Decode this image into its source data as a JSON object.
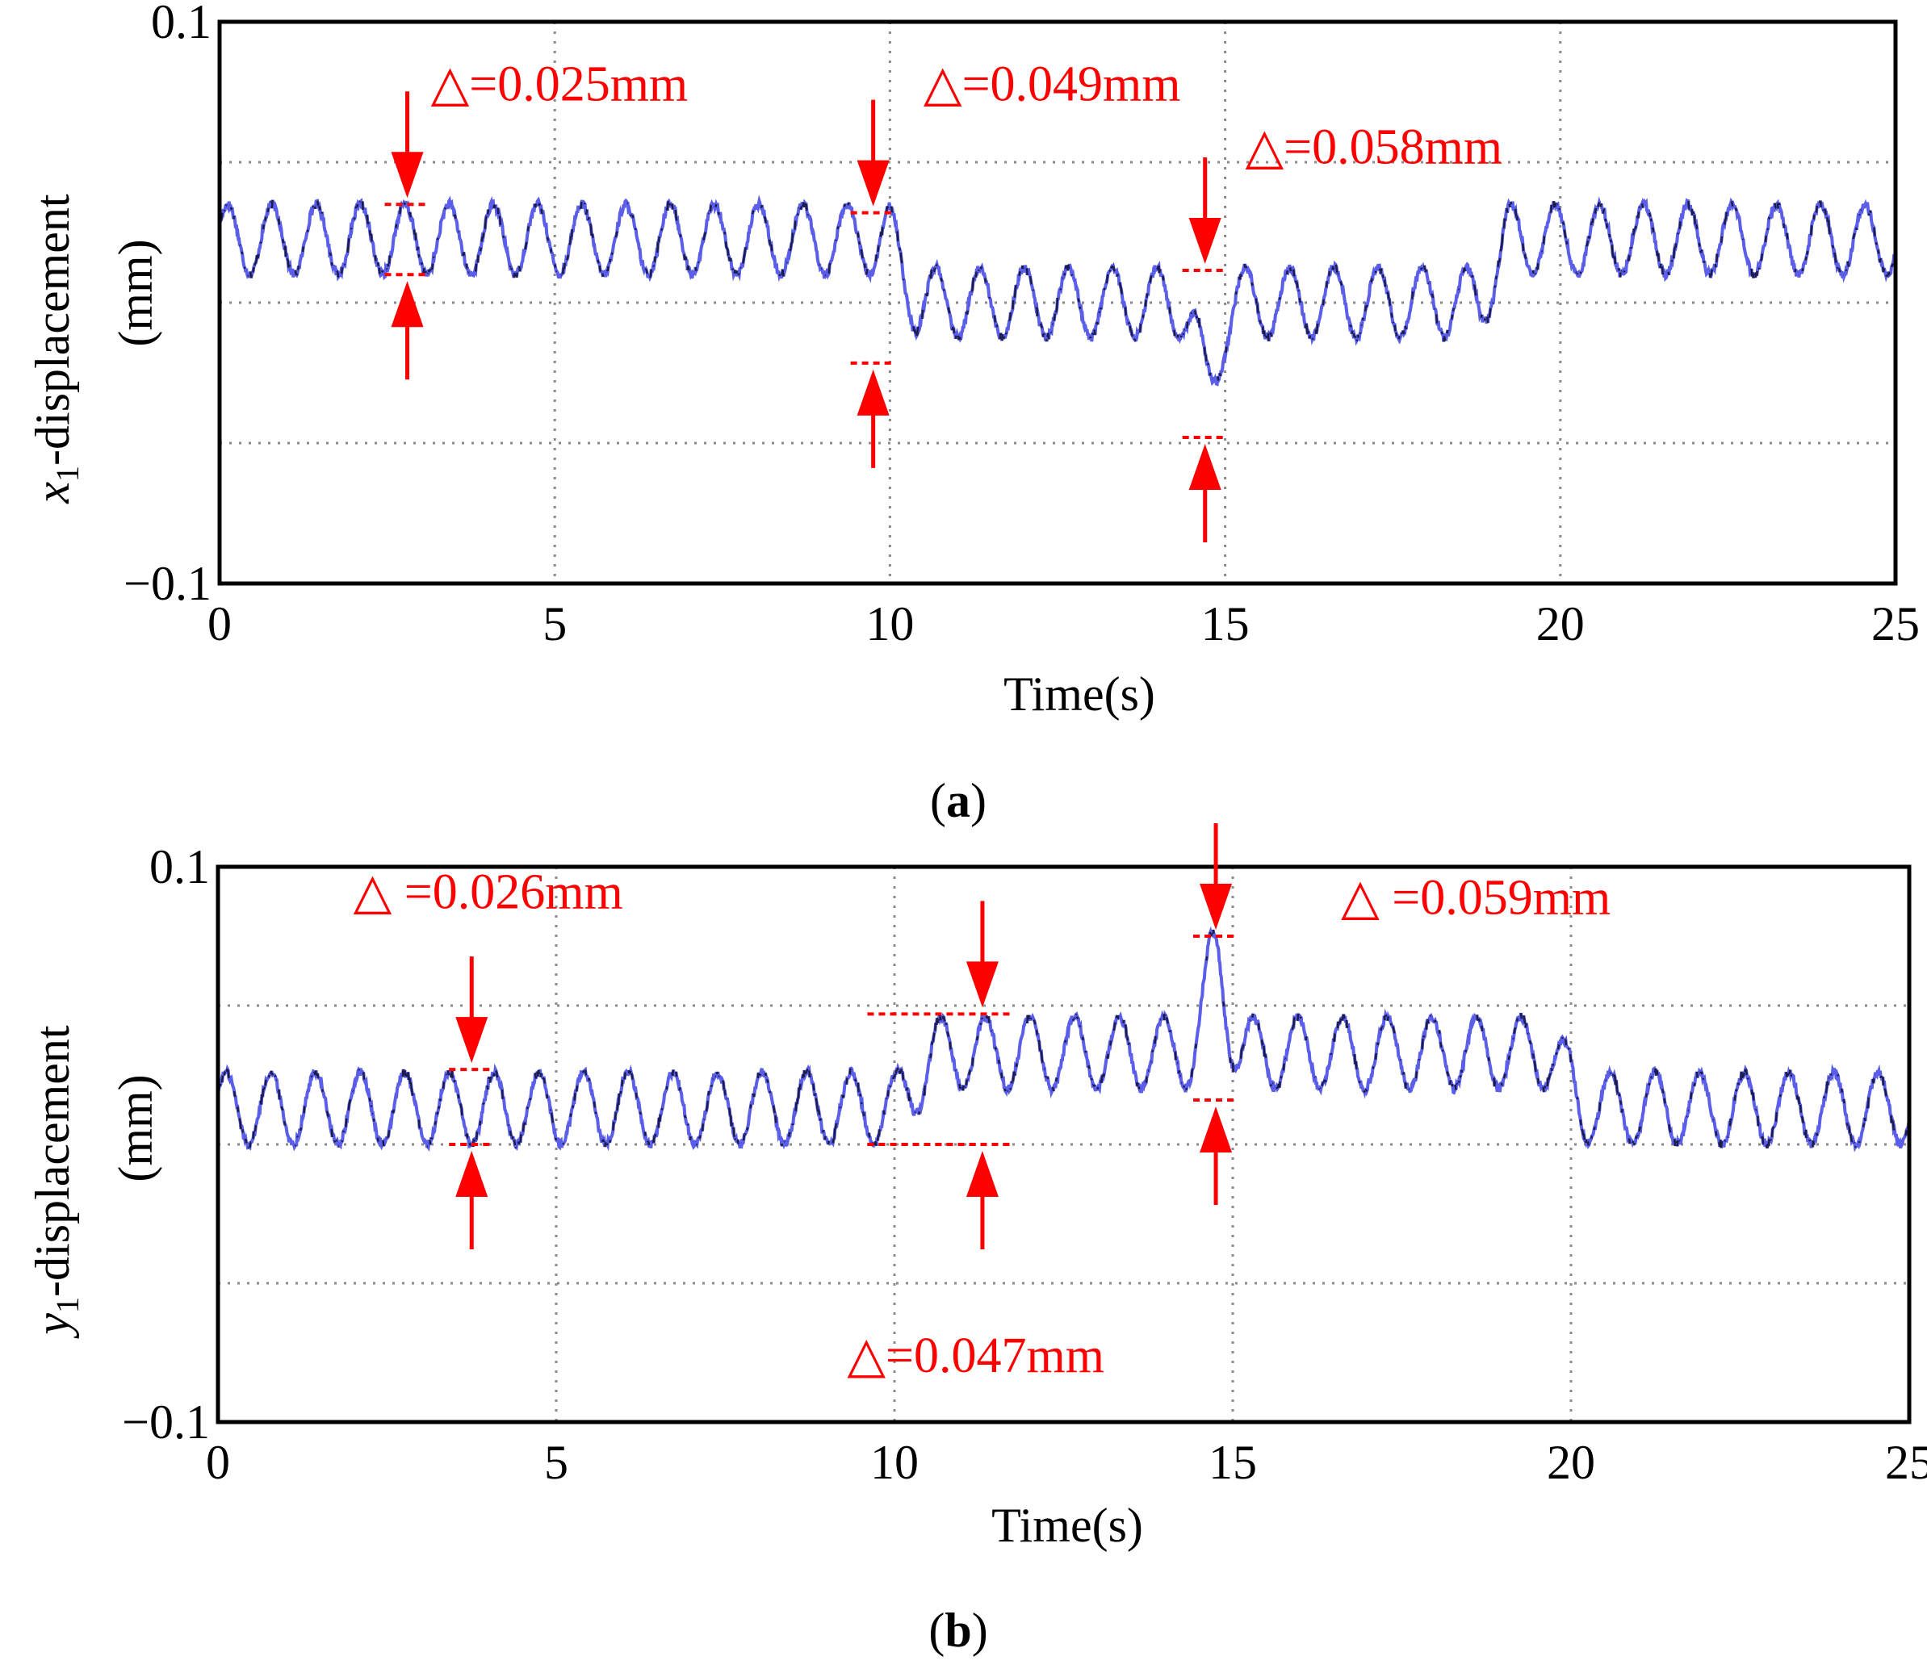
{
  "colors": {
    "signal": "#5a5ee8",
    "signal_dark": "#1c1c4a",
    "annotation": "#ff0000",
    "frame": "#000000",
    "grid": "#8a8a8a"
  },
  "chart_data": [
    {
      "panel_label_open": "(",
      "panel_label": "a",
      "panel_label_close": ")",
      "type": "line",
      "title": "",
      "xlabel": "Time(s)",
      "ylabel_var": "x",
      "ylabel_sub": "1",
      "ylabel_rest": "-displacement",
      "ylabel_unit": "(mm)",
      "xlim": [
        0,
        25
      ],
      "ylim": [
        -0.1,
        0.1
      ],
      "x_ticks": [
        0,
        5,
        10,
        15,
        20,
        25
      ],
      "x_tick_labels": [
        "0",
        "5",
        "10",
        "15",
        "20",
        "25"
      ],
      "y_tick_labels": [
        "0.1",
        "−0.1"
      ],
      "grid": true,
      "signal_model": {
        "sample_step_s": 0.01,
        "oscillation_period_s": 0.66,
        "oscillation_amplitude_mm": 0.0125,
        "noise_mm": 0.0015,
        "baseline_segments": [
          {
            "t_start": 0,
            "t_end": 10.0,
            "center_mm": 0.0225
          },
          {
            "t_start": 10.0,
            "t_end": 10.4,
            "center_mm": 0.0
          },
          {
            "t_start": 10.4,
            "t_end": 18.8,
            "center_mm": 0.0
          },
          {
            "t_start": 18.8,
            "t_end": 19.2,
            "center_mm": 0.0225
          },
          {
            "t_start": 19.2,
            "t_end": 25,
            "center_mm": 0.0225
          }
        ],
        "spikes": [
          {
            "t": 14.75,
            "depth_mm": -0.03,
            "width_s": 0.35
          }
        ]
      },
      "annotations": [
        {
          "label": "△=0.025mm",
          "x": 2.8,
          "y_top": 0.035,
          "y_bottom": 0.01,
          "label_x": 3.15,
          "label_y": 0.072
        },
        {
          "label": "△=0.049mm",
          "x": 9.75,
          "y_top": 0.032,
          "y_bottom": -0.0215,
          "label_x": 10.5,
          "label_y": 0.072
        },
        {
          "label": "△=0.058mm",
          "x": 14.7,
          "y_top": 0.0115,
          "y_bottom": -0.048,
          "label_x": 15.3,
          "label_y": 0.0495
        }
      ]
    },
    {
      "panel_label_open": "(",
      "panel_label": "b",
      "panel_label_close": ")",
      "type": "line",
      "title": "",
      "xlabel": "Time(s)",
      "ylabel_var": "y",
      "ylabel_sub": "1",
      "ylabel_rest": "-displacement",
      "ylabel_unit": "(mm)",
      "xlim": [
        0,
        25
      ],
      "ylim": [
        -0.1,
        0.1
      ],
      "x_ticks": [
        0,
        5,
        10,
        15,
        20,
        25
      ],
      "x_tick_labels": [
        "0",
        "5",
        "10",
        "15",
        "20",
        "25"
      ],
      "y_tick_labels": [
        "0.1",
        "−0.1"
      ],
      "grid": true,
      "signal_model": {
        "sample_step_s": 0.01,
        "oscillation_period_s": 0.66,
        "oscillation_amplitude_mm": 0.013,
        "noise_mm": 0.0015,
        "baseline_segments": [
          {
            "t_start": 0,
            "t_end": 10.0,
            "center_mm": 0.013
          },
          {
            "t_start": 10.0,
            "t_end": 10.6,
            "center_mm": 0.033
          },
          {
            "t_start": 10.6,
            "t_end": 19.7,
            "center_mm": 0.033
          },
          {
            "t_start": 19.7,
            "t_end": 20.2,
            "center_mm": 0.013
          },
          {
            "t_start": 20.2,
            "t_end": 25,
            "center_mm": 0.013
          }
        ],
        "spikes": [
          {
            "t": 14.75,
            "depth_mm": 0.035,
            "width_s": 0.35
          }
        ]
      },
      "annotations": [
        {
          "label": "△ =0.026mm",
          "x": 3.75,
          "y_top": 0.027,
          "y_bottom": 0.0,
          "label_x": 2.0,
          "label_y": 0.085,
          "label_anchor": "start"
        },
        {
          "label": "△=0.047mm",
          "x": 11.3,
          "y_top": 0.047,
          "y_bottom": 0.0,
          "label_x": 9.3,
          "label_y": -0.082,
          "label_anchor": "start",
          "dash_left": 9.6,
          "dash_right": 11.7
        },
        {
          "label": "△ =0.059mm",
          "x": 14.75,
          "y_top": 0.075,
          "y_bottom": 0.016,
          "label_x": 16.6,
          "label_y": 0.083,
          "label_anchor": "start"
        }
      ]
    }
  ]
}
